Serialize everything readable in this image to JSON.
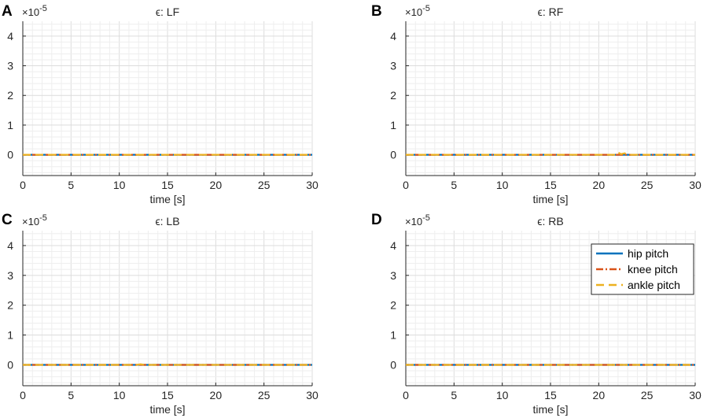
{
  "exponent_label": {
    "base": "×10",
    "power": "-5"
  },
  "legend": [
    {
      "name": "hip pitch",
      "color": "#0072BD",
      "style": "solid"
    },
    {
      "name": "knee pitch",
      "color": "#D95319",
      "style": "dashdot"
    },
    {
      "name": "ankle pitch",
      "color": "#EDB120",
      "style": "dashed"
    }
  ],
  "chart_data": [
    {
      "panel": "A",
      "type": "line",
      "title": "ϵ: LF",
      "xlabel": "time [s]",
      "ylabel": "",
      "xlim": [
        0,
        30
      ],
      "ylim": [
        -0.7,
        4.5
      ],
      "xticks": [
        "0",
        "5",
        "10",
        "15",
        "20",
        "25",
        "30"
      ],
      "yticks": [
        "0",
        "1",
        "2",
        "3",
        "4"
      ],
      "grid": true,
      "legend": false,
      "series": [
        {
          "name": "hip pitch",
          "x": [
            0,
            30
          ],
          "y": [
            0,
            0
          ]
        },
        {
          "name": "knee pitch",
          "x": [
            0,
            30
          ],
          "y": [
            0,
            0
          ]
        },
        {
          "name": "ankle pitch",
          "x": [
            0,
            30
          ],
          "y": [
            0,
            0
          ]
        }
      ]
    },
    {
      "panel": "B",
      "type": "line",
      "title": "ϵ: RF",
      "xlabel": "time [s]",
      "ylabel": "",
      "xlim": [
        0,
        30
      ],
      "ylim": [
        -0.7,
        4.5
      ],
      "xticks": [
        "0",
        "5",
        "10",
        "15",
        "20",
        "25",
        "30"
      ],
      "yticks": [
        "0",
        "1",
        "2",
        "3",
        "4"
      ],
      "grid": true,
      "legend": false,
      "series": [
        {
          "name": "hip pitch",
          "x": [
            0,
            30
          ],
          "y": [
            0,
            0
          ]
        },
        {
          "name": "knee pitch",
          "x": [
            0,
            30
          ],
          "y": [
            0,
            0
          ]
        },
        {
          "name": "ankle pitch",
          "x": [
            0,
            21.8,
            22.0,
            22.3,
            22.7,
            23.0,
            30
          ],
          "y": [
            0,
            0,
            0.08,
            0.02,
            0.05,
            0,
            0
          ]
        }
      ]
    },
    {
      "panel": "C",
      "type": "line",
      "title": "ϵ: LB",
      "xlabel": "time [s]",
      "ylabel": "",
      "xlim": [
        0,
        30
      ],
      "ylim": [
        -0.7,
        4.5
      ],
      "xticks": [
        "0",
        "5",
        "10",
        "15",
        "20",
        "25",
        "30"
      ],
      "yticks": [
        "0",
        "1",
        "2",
        "3",
        "4"
      ],
      "grid": true,
      "legend": false,
      "series": [
        {
          "name": "hip pitch",
          "x": [
            0,
            30
          ],
          "y": [
            0,
            0
          ]
        },
        {
          "name": "knee pitch",
          "x": [
            0,
            30
          ],
          "y": [
            0,
            0
          ]
        },
        {
          "name": "ankle pitch",
          "x": [
            0,
            11.8,
            12.2,
            12.6,
            30
          ],
          "y": [
            0,
            0,
            0.02,
            0,
            0
          ]
        }
      ]
    },
    {
      "panel": "D",
      "type": "line",
      "title": "ϵ: RB",
      "xlabel": "time [s]",
      "ylabel": "",
      "xlim": [
        0,
        30
      ],
      "ylim": [
        -0.7,
        4.5
      ],
      "xticks": [
        "0",
        "5",
        "10",
        "15",
        "20",
        "25",
        "30"
      ],
      "yticks": [
        "0",
        "1",
        "2",
        "3",
        "4"
      ],
      "grid": true,
      "legend": true,
      "legend_location": "top-right",
      "series": [
        {
          "name": "hip pitch",
          "x": [
            0,
            30
          ],
          "y": [
            0,
            0
          ]
        },
        {
          "name": "knee pitch",
          "x": [
            0,
            30
          ],
          "y": [
            0,
            0
          ]
        },
        {
          "name": "ankle pitch",
          "x": [
            0,
            30
          ],
          "y": [
            0,
            0
          ]
        }
      ]
    }
  ]
}
